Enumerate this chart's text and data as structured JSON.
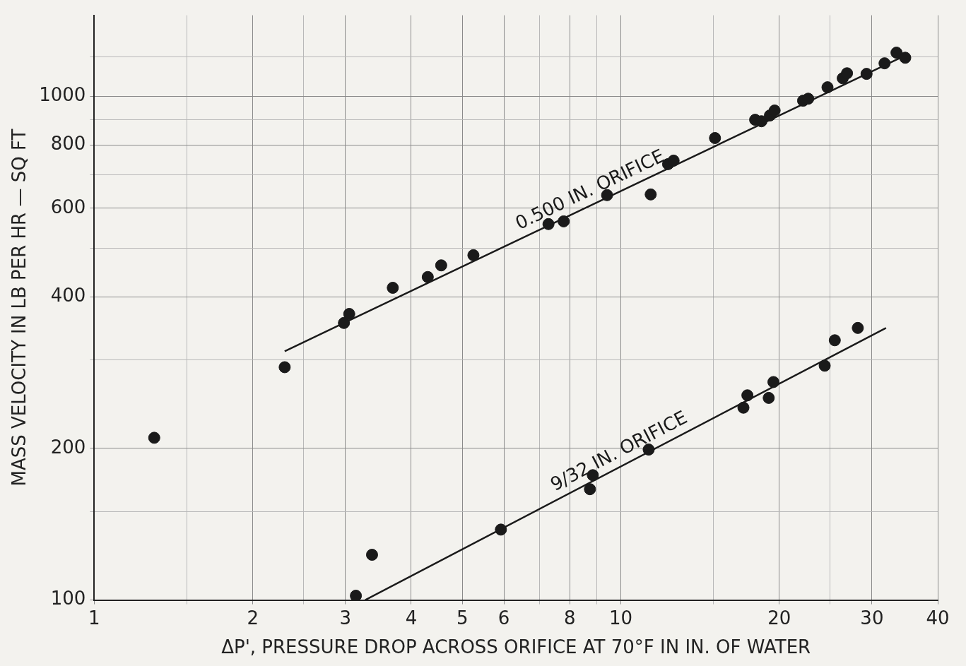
{
  "chart_data": {
    "type": "scatter",
    "xlabel": "ΔP', PRESSURE DROP ACROSS ORIFICE AT 70°F IN IN. OF WATER",
    "ylabel": "MASS VELOCITY IN LB PER HR — SQ FT",
    "log": "xy",
    "grid": true,
    "marker": "circle",
    "xlim": [
      1,
      40
    ],
    "ylim": [
      100,
      1450
    ],
    "xticks": [
      1,
      {
        "value": 1.5,
        "label": null
      },
      2,
      {
        "value": 2.5,
        "label": null
      },
      3,
      4,
      5,
      6,
      {
        "value": 7,
        "label": null
      },
      8,
      {
        "value": 9,
        "label": null
      },
      10,
      {
        "value": 15,
        "label": null
      },
      20,
      {
        "value": 25,
        "label": null
      },
      30,
      40
    ],
    "yticks": [
      100,
      {
        "value": 150,
        "label": null
      },
      200,
      {
        "value": 300,
        "label": null
      },
      400,
      {
        "value": 500,
        "label": null
      },
      600,
      {
        "value": 700,
        "label": null
      },
      800,
      {
        "value": 900,
        "label": null
      },
      1000,
      {
        "value": 1200,
        "label": null
      }
    ],
    "series": [
      {
        "color": "#1a1a1a",
        "x": [
          1.3,
          2.3,
          2.98,
          3.05,
          3.69,
          4.3,
          4.56,
          5.25,
          7.29,
          7.79,
          9.42,
          11.4,
          12.3,
          12.6,
          15.1,
          18.0,
          18.5,
          19.2,
          19.6,
          22.2,
          22.7,
          24.7,
          26.4,
          26.9,
          29.3,
          31.7,
          33.4,
          34.7
        ],
        "values": [
          210,
          290,
          355,
          370,
          417,
          438,
          462,
          484,
          558,
          565,
          637,
          639,
          734,
          746,
          827,
          899,
          893,
          917,
          938,
          981,
          990,
          1043,
          1087,
          1112,
          1109,
          1164,
          1222,
          1194
        ]
      },
      {
        "type": "line",
        "marker": "none",
        "name": "0.500 IN. ORIFICE",
        "color": "#1a1a1a",
        "x": [
          2.3,
          35.1
        ],
        "values": [
          312,
          1213
        ]
      },
      {
        "color": "#1a1a1a",
        "x": [
          3.14,
          3.37,
          5.92,
          8.74,
          8.85,
          11.3,
          17.1,
          17.4,
          19.1,
          19.5,
          24.4,
          25.5,
          28.2
        ],
        "values": [
          102,
          123,
          138,
          166,
          177,
          199,
          241,
          255,
          252,
          271,
          292,
          328,
          347
        ]
      },
      {
        "type": "line",
        "marker": "none",
        "name": "9/32 IN. ORIFICE",
        "color": "#1a1a1a",
        "x": [
          3.27,
          31.9
        ],
        "values": [
          100,
          347
        ]
      }
    ]
  }
}
